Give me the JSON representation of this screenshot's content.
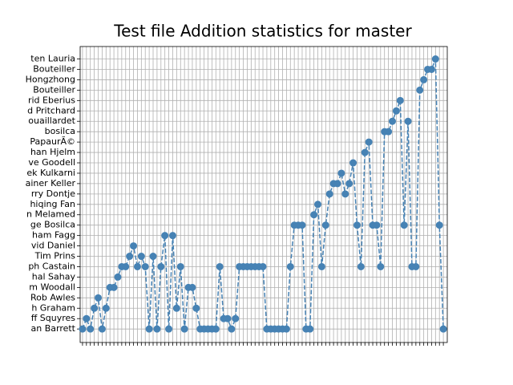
{
  "chart_data": {
    "type": "line",
    "title": "Test file Addition statistics for master",
    "y_categories": [
      "an Barrett",
      "ff Squyres",
      "h Graham",
      "Rob Awles",
      "m Woodall",
      "hal Sahay",
      "ph Castain",
      "Tim Prins",
      "vid Daniel",
      "ham Fagg",
      "ge Bosilca",
      "n Melamed",
      "hiqing Fan",
      "rry Dontje",
      "ainer Keller",
      "ek Kulkarni",
      "ve Goodell",
      "han Hjelm",
      "PapaurÃ©",
      "bosilca",
      "ouaillardet",
      "d Pritchard",
      "rid Eberius",
      "Bouteiller",
      "Hongzhong",
      "Bouteiller",
      "ten Lauria"
    ],
    "categories": [
      null,
      null,
      null,
      null,
      null,
      null,
      null,
      null,
      null,
      null,
      null,
      null,
      null,
      null,
      null,
      null,
      null,
      null,
      null,
      null,
      null,
      null,
      null,
      null,
      null,
      null,
      null,
      null,
      null,
      null,
      null,
      null,
      null,
      null,
      null,
      null,
      null,
      null,
      null,
      null,
      null,
      null,
      null,
      null,
      null,
      null,
      null,
      null,
      null,
      null,
      null,
      null,
      null,
      null,
      null,
      null,
      null,
      null,
      null,
      null,
      null,
      null,
      null,
      null,
      null,
      null,
      null,
      null,
      null,
      null,
      null,
      null,
      null,
      null,
      null,
      null,
      null,
      null,
      null,
      null,
      null,
      null,
      null,
      null,
      null,
      null,
      null,
      null,
      null,
      null,
      null,
      null,
      null
    ],
    "values": [
      0,
      1,
      0,
      2,
      3,
      0,
      2,
      4,
      4,
      5,
      6,
      6,
      7,
      8,
      6,
      7,
      6,
      0,
      7,
      0,
      6,
      9,
      0,
      9,
      2,
      6,
      0,
      4,
      4,
      2,
      0,
      0,
      0,
      0,
      0,
      6,
      1,
      1,
      0,
      1,
      6,
      6,
      6,
      6,
      6,
      6,
      6,
      0,
      0,
      0,
      0,
      0,
      0,
      6,
      10,
      10,
      10,
      0,
      0,
      11,
      12,
      6,
      10,
      13,
      14,
      14,
      15,
      13,
      14,
      16,
      10,
      6,
      17,
      18,
      10,
      10,
      6,
      19,
      19,
      20,
      21,
      22,
      10,
      20,
      6,
      6,
      23,
      24,
      25,
      25,
      26,
      10,
      0
    ],
    "color": "#4682b4",
    "linestyle": "dashed",
    "marker": "circle",
    "grid": true,
    "xlim": [
      -0.6,
      93
    ],
    "ylim": [
      -1.3,
      27.2
    ]
  }
}
